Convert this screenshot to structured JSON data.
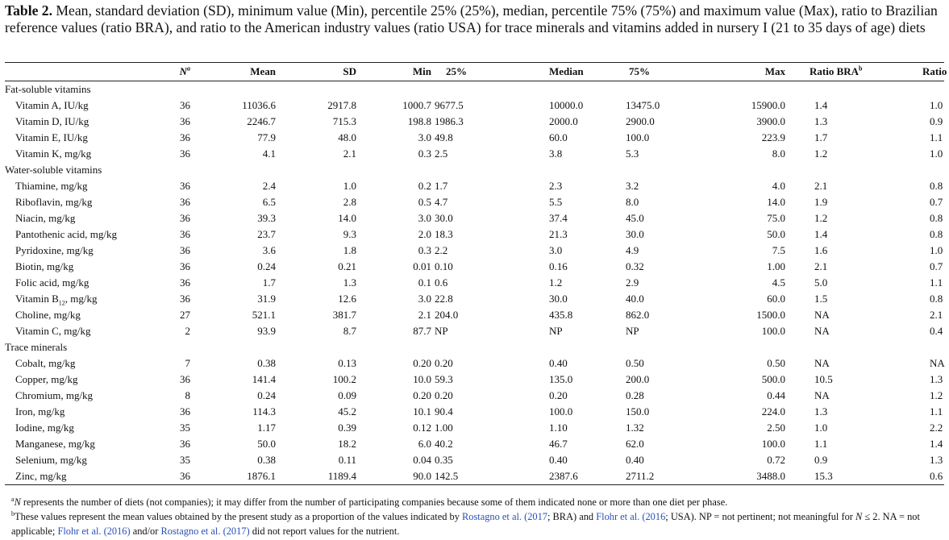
{
  "caption": {
    "label": "Table 2.",
    "text": " Mean, standard deviation (SD), minimum value (Min), percentile 25% (25%), median, percentile 75% (75%) and maximum value (Max), ratio to Brazilian reference values (ratio BRA), and ratio to the American industry values (ratio USA) for trace minerals and vitamins added in nursery I (21 to 35 days of age) diets"
  },
  "headers": {
    "n": "N",
    "n_sup": "a",
    "mean": "Mean",
    "sd": "SD",
    "min": "Min",
    "p25": "25%",
    "median": "Median",
    "p75": "75%",
    "max": "Max",
    "ratio_bra": "Ratio BRA",
    "ratio_bra_sup": "b",
    "ratio_usa": "Ratio USA",
    "ratio_usa_sup": "b"
  },
  "sections": [
    {
      "title": "Fat-soluble vitamins",
      "rows": [
        {
          "name": "Vitamin A, IU/kg",
          "n": "36",
          "mean": "11036.6",
          "sd": "2917.8",
          "min": "1000.7",
          "p25": "9677.5",
          "median": "10000.0",
          "p75": "13475.0",
          "max": "15900.0",
          "bra": "1.4",
          "usa": "1.0"
        },
        {
          "name": "Vitamin D, IU/kg",
          "n": "36",
          "mean": "2246.7",
          "sd": "715.3",
          "min": "198.8",
          "p25": "1986.3",
          "median": "2000.0",
          "p75": "2900.0",
          "max": "3900.0",
          "bra": "1.3",
          "usa": "0.9"
        },
        {
          "name": "Vitamin E, IU/kg",
          "n": "36",
          "mean": "77.9",
          "sd": "48.0",
          "min": "3.0",
          "p25": "49.8",
          "median": "60.0",
          "p75": "100.0",
          "max": "223.9",
          "bra": "1.7",
          "usa": "1.1"
        },
        {
          "name": "Vitamin K, mg/kg",
          "n": "36",
          "mean": "4.1",
          "sd": "2.1",
          "min": "0.3",
          "p25": "2.5",
          "median": "3.8",
          "p75": "5.3",
          "max": "8.0",
          "bra": "1.2",
          "usa": "1.0"
        }
      ]
    },
    {
      "title": "Water-soluble vitamins",
      "rows": [
        {
          "name": "Thiamine, mg/kg",
          "n": "36",
          "mean": "2.4",
          "sd": "1.0",
          "min": "0.2",
          "p25": "1.7",
          "median": "2.3",
          "p75": "3.2",
          "max": "4.0",
          "bra": "2.1",
          "usa": "0.8"
        },
        {
          "name": "Riboflavin, mg/kg",
          "n": "36",
          "mean": "6.5",
          "sd": "2.8",
          "min": "0.5",
          "p25": "4.7",
          "median": "5.5",
          "p75": "8.0",
          "max": "14.0",
          "bra": "1.9",
          "usa": "0.7"
        },
        {
          "name": "Niacin, mg/kg",
          "n": "36",
          "mean": "39.3",
          "sd": "14.0",
          "min": "3.0",
          "p25": "30.0",
          "median": "37.4",
          "p75": "45.0",
          "max": "75.0",
          "bra": "1.2",
          "usa": "0.8"
        },
        {
          "name": "Pantothenic acid, mg/kg",
          "n": "36",
          "mean": "23.7",
          "sd": "9.3",
          "min": "2.0",
          "p25": "18.3",
          "median": "21.3",
          "p75": "30.0",
          "max": "50.0",
          "bra": "1.4",
          "usa": "0.8"
        },
        {
          "name": "Pyridoxine, mg/kg",
          "n": "36",
          "mean": "3.6",
          "sd": "1.8",
          "min": "0.3",
          "p25": "2.2",
          "median": "3.0",
          "p75": "4.9",
          "max": "7.5",
          "bra": "1.6",
          "usa": "1.0"
        },
        {
          "name": "Biotin, mg/kg",
          "n": "36",
          "mean": "0.24",
          "sd": "0.21",
          "min": "0.01",
          "p25": "0.10",
          "median": "0.16",
          "p75": "0.32",
          "max": "1.00",
          "bra": "2.1",
          "usa": "0.7"
        },
        {
          "name": "Folic acid, mg/kg",
          "n": "36",
          "mean": "1.7",
          "sd": "1.3",
          "min": "0.1",
          "p25": "0.6",
          "median": "1.2",
          "p75": "2.9",
          "max": "4.5",
          "bra": "5.0",
          "usa": "1.1"
        },
        {
          "name": "Vitamin B",
          "sub": "12",
          "name_rest": ", mg/kg",
          "n": "36",
          "mean": "31.9",
          "sd": "12.6",
          "min": "3.0",
          "p25": "22.8",
          "median": "30.0",
          "p75": "40.0",
          "max": "60.0",
          "bra": "1.5",
          "usa": "0.8"
        },
        {
          "name": "Choline, mg/kg",
          "n": "27",
          "mean": "521.1",
          "sd": "381.7",
          "min": "2.1",
          "p25": "204.0",
          "median": "435.8",
          "p75": "862.0",
          "max": "1500.0",
          "bra": "NA",
          "usa": "2.1"
        },
        {
          "name": "Vitamin C, mg/kg",
          "n": "2",
          "mean": "93.9",
          "sd": "8.7",
          "min": "87.7",
          "p25": "NP",
          "median": "NP",
          "p75": "NP",
          "max": "100.0",
          "bra": "NA",
          "usa": "0.4"
        }
      ]
    },
    {
      "title": "Trace minerals",
      "rows": [
        {
          "name": "Cobalt, mg/kg",
          "n": "7",
          "mean": "0.38",
          "sd": "0.13",
          "min": "0.20",
          "p25": "0.20",
          "median": "0.40",
          "p75": "0.50",
          "max": "0.50",
          "bra": "NA",
          "usa": "NA"
        },
        {
          "name": "Copper, mg/kg",
          "n": "36",
          "mean": "141.4",
          "sd": "100.2",
          "min": "10.0",
          "p25": "59.3",
          "median": "135.0",
          "p75": "200.0",
          "max": "500.0",
          "bra": "10.5",
          "usa": "1.3"
        },
        {
          "name": "Chromium, mg/kg",
          "n": "8",
          "mean": "0.24",
          "sd": "0.09",
          "min": "0.20",
          "p25": "0.20",
          "median": "0.20",
          "p75": "0.28",
          "max": "0.44",
          "bra": "NA",
          "usa": "1.2"
        },
        {
          "name": "Iron, mg/kg",
          "n": "36",
          "mean": "114.3",
          "sd": "45.2",
          "min": "10.1",
          "p25": "90.4",
          "median": "100.0",
          "p75": "150.0",
          "max": "224.0",
          "bra": "1.3",
          "usa": "1.1"
        },
        {
          "name": "Iodine, mg/kg",
          "n": "35",
          "mean": "1.17",
          "sd": "0.39",
          "min": "0.12",
          "p25": "1.00",
          "median": "1.10",
          "p75": "1.32",
          "max": "2.50",
          "bra": "1.0",
          "usa": "2.2"
        },
        {
          "name": "Manganese, mg/kg",
          "n": "36",
          "mean": "50.0",
          "sd": "18.2",
          "min": "6.0",
          "p25": "40.2",
          "median": "46.7",
          "p75": "62.0",
          "max": "100.0",
          "bra": "1.1",
          "usa": "1.4"
        },
        {
          "name": "Selenium, mg/kg",
          "n": "35",
          "mean": "0.38",
          "sd": "0.11",
          "min": "0.04",
          "p25": "0.35",
          "median": "0.40",
          "p75": "0.40",
          "max": "0.72",
          "bra": "0.9",
          "usa": "1.3"
        },
        {
          "name": "Zinc, mg/kg",
          "n": "36",
          "mean": "1876.1",
          "sd": "1189.4",
          "min": "90.0",
          "p25": "142.5",
          "median": "2387.6",
          "p75": "2711.2",
          "max": "3488.0",
          "bra": "15.3",
          "usa": "0.6"
        }
      ]
    }
  ],
  "footnotes": {
    "a_sup": "a",
    "a_var": "N",
    "a_text": " represents the number of diets (not companies); it may differ from the number of participating companies because some of them indicated none or more than one diet per phase.",
    "b_sup": "b",
    "b_text1": "These values represent the mean values obtained by the present study as a proportion of the values indicated by ",
    "b_link1": "Rostagno et al. (2017",
    "b_text2": "; BRA) and ",
    "b_link2": "Flohr et al. (2016",
    "b_text3": "; USA). NP = not pertinent; not meaningful for ",
    "b_var": "N",
    "b_text4": " ≤ 2. NA = not applicable; ",
    "b_link3": "Flohr et al. (2016)",
    "b_text5": " and/or ",
    "b_link4": "Rostagno et al. (2017)",
    "b_text6": " did not report values for the nutrient."
  }
}
